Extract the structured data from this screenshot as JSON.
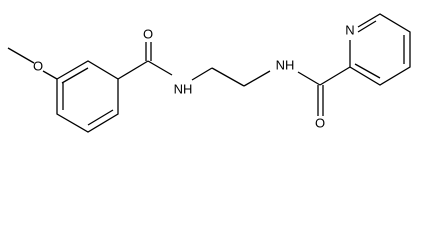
{
  "atoms": [
    {
      "label": "O"
    },
    {
      "label": "O"
    },
    {
      "label": "NH"
    },
    {
      "label": "NH"
    },
    {
      "label": "O"
    },
    {
      "label": "N"
    }
  ]
}
